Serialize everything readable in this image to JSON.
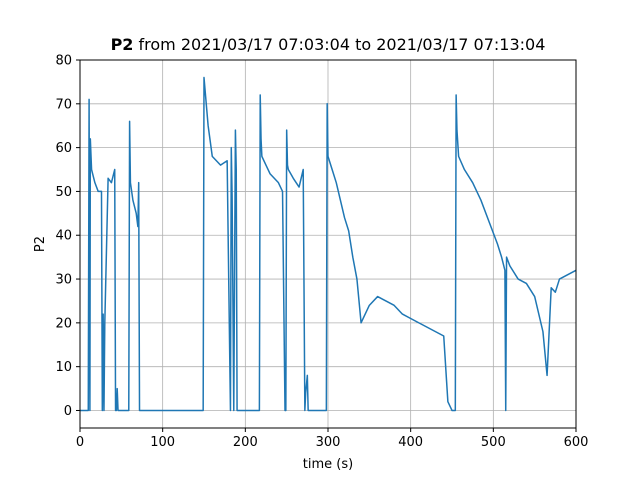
{
  "chart_data": {
    "type": "line",
    "title_bold": "P2",
    "title_rest": " from 2021/03/17 07:03:04 to 2021/03/17 07:13:04",
    "xlabel": "time (s)",
    "ylabel": "P2",
    "xlim": [
      0,
      600
    ],
    "ylim": [
      -4,
      80
    ],
    "xticks": [
      0,
      100,
      200,
      300,
      400,
      500,
      600
    ],
    "yticks": [
      0,
      10,
      20,
      30,
      40,
      50,
      60,
      70,
      80
    ],
    "grid": true,
    "line_color": "#1f77b4",
    "series": [
      {
        "x": [
          0,
          10,
          11,
          12,
          12.5,
          14,
          18,
          22,
          26,
          27,
          28,
          29,
          30,
          34,
          38,
          42,
          43,
          44,
          45,
          46,
          47,
          48,
          58,
          59,
          60,
          61,
          64,
          68,
          70,
          71,
          72,
          73,
          74,
          100,
          148,
          149,
          150,
          155,
          160,
          170,
          178,
          182,
          183,
          184,
          186,
          188,
          189,
          190,
          191,
          192,
          215,
          217,
          218,
          219,
          220,
          225,
          230,
          240,
          245,
          248,
          249,
          250,
          251,
          252,
          258,
          265,
          270,
          272,
          273,
          275,
          276,
          298,
          299,
          300,
          305,
          310,
          315,
          320,
          325,
          330,
          335,
          340,
          350,
          360,
          370,
          380,
          390,
          400,
          410,
          420,
          430,
          440,
          445,
          450,
          453,
          454,
          455,
          456,
          458,
          465,
          475,
          485,
          495,
          505,
          510,
          514,
          515,
          516,
          520,
          530,
          540,
          550,
          560,
          565,
          570,
          575,
          580,
          590,
          600
        ],
        "y": [
          0,
          0,
          71,
          0,
          62,
          55,
          52,
          50,
          50,
          0,
          22,
          0,
          20,
          53,
          52,
          55,
          0,
          0,
          5,
          0,
          0,
          0,
          0,
          0,
          66,
          52,
          48,
          45,
          42,
          52,
          0,
          0,
          0,
          0,
          0,
          0,
          76,
          65,
          58,
          56,
          57,
          0,
          60,
          49,
          0,
          64,
          55,
          0,
          0,
          0,
          0,
          0,
          72,
          62,
          58,
          56,
          54,
          52,
          50,
          0,
          0,
          64,
          56,
          55,
          53,
          51,
          55,
          0,
          4,
          8,
          0,
          0,
          70,
          58,
          55,
          52,
          48,
          44,
          41,
          35,
          30,
          20,
          24,
          26,
          25,
          24,
          22,
          21,
          20,
          19,
          18,
          17,
          2,
          0,
          0,
          0,
          72,
          64,
          58,
          55,
          52,
          48,
          43,
          38,
          35,
          32,
          0,
          35,
          33,
          30,
          29,
          26,
          18,
          8,
          28,
          27,
          30,
          31,
          32
        ]
      }
    ]
  }
}
